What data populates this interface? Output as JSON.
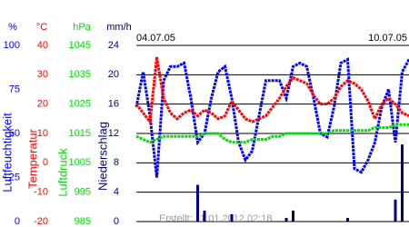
{
  "chart_data": {
    "type": "line",
    "start_label": "04.07.05",
    "end_label": "10.07.05",
    "footnote": "Erstellt: 11.01.2012 02:18",
    "grid": true,
    "axes": [
      {
        "unit": "%",
        "label": "Luftfeuchtigkeit",
        "color": "#0000ff",
        "ylim": [
          0,
          100
        ],
        "yticks": [
          0,
          25,
          50,
          75,
          100
        ]
      },
      {
        "unit": "°C",
        "label": "Temperatur",
        "color": "#ff0000",
        "ylim": [
          -20,
          40
        ],
        "yticks": [
          -20,
          -10,
          0,
          10,
          20,
          30,
          40
        ]
      },
      {
        "unit": "hPa",
        "label": "Luftdruck",
        "color": "#00dd00",
        "ylim": [
          985,
          1045
        ],
        "yticks": [
          985,
          995,
          1005,
          1015,
          1025,
          1035,
          1045
        ]
      },
      {
        "unit": "mm/h",
        "label": "Niederschlag",
        "color": "#000080",
        "ylim": [
          0,
          24
        ],
        "yticks": [
          0,
          4,
          8,
          12,
          16,
          20,
          24
        ]
      }
    ],
    "series": [
      {
        "axis": 0,
        "type": "line",
        "color": "#0000ff",
        "values": [
          65,
          85,
          60,
          25,
          80,
          88,
          88,
          90,
          70,
          45,
          50,
          70,
          85,
          88,
          70,
          45,
          35,
          40,
          60,
          80,
          80,
          80,
          70,
          88,
          90,
          88,
          70,
          50,
          48,
          65,
          90,
          92,
          30,
          28,
          35,
          45,
          65,
          75,
          45,
          85,
          92
        ]
      },
      {
        "axis": 1,
        "type": "line",
        "color": "#ff0000",
        "values": [
          20,
          17,
          14,
          36,
          22,
          17,
          15,
          17,
          18,
          16,
          18,
          17,
          15,
          16,
          21,
          18,
          15,
          14,
          15,
          16,
          19,
          22,
          26,
          29,
          28,
          27,
          23,
          20,
          20,
          22,
          26,
          28,
          27,
          25,
          21,
          15,
          20,
          22,
          20,
          17,
          16
        ]
      },
      {
        "axis": 2,
        "type": "line",
        "color": "#00dd00",
        "values": [
          1014,
          1013,
          1012,
          1013,
          1014,
          1014,
          1014,
          1014,
          1014,
          1014,
          1015,
          1015,
          1015,
          1013,
          1012,
          1012,
          1012,
          1013,
          1013,
          1013,
          1014,
          1014,
          1015,
          1015,
          1015,
          1015,
          1015,
          1015,
          1015,
          1016,
          1016,
          1016,
          1016,
          1016,
          1016,
          1017,
          1017,
          1017,
          1018,
          1018,
          1018
        ]
      },
      {
        "axis": 3,
        "type": "bar",
        "color": "#000080",
        "values": [
          0,
          0,
          0,
          0,
          0,
          0,
          0,
          0,
          0,
          5,
          1.5,
          0,
          0,
          0,
          1,
          0,
          0,
          0,
          0,
          0,
          0,
          0,
          0.5,
          1.5,
          0,
          0,
          0,
          0,
          0,
          0,
          0,
          0.5,
          0,
          0,
          0,
          0,
          0,
          0,
          3,
          10.5,
          0
        ]
      }
    ]
  }
}
